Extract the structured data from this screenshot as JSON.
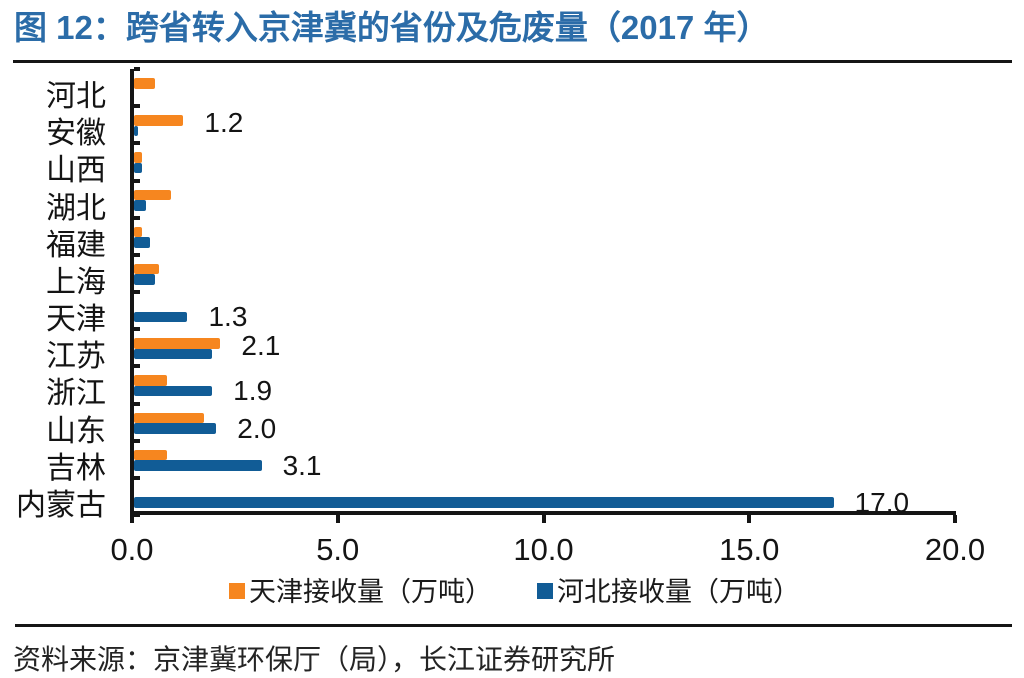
{
  "header": {
    "title": "图 12：跨省转入京津冀的省份及危废量（2017 年）"
  },
  "source": {
    "note": "资料来源：京津冀环保厅（局），长江证券研究所"
  },
  "colors": {
    "title_blue": "#2B6CA8",
    "tianjin_orange": "#F6861F",
    "hebei_blue": "#115C96",
    "axis_black": "#151515",
    "text_black": "#141414",
    "background": "#ffffff"
  },
  "chart_data": {
    "type": "bar",
    "orientation": "horizontal",
    "title": "图 12：跨省转入京津冀的省份及危废量（2017 年）",
    "categories": [
      "河北",
      "安徽",
      "山西",
      "湖北",
      "福建",
      "上海",
      "天津",
      "江苏",
      "浙江",
      "山东",
      "吉林",
      "内蒙古"
    ],
    "series": [
      {
        "name": "天津接收量（万吨）",
        "color": "#F6861F",
        "values": [
          0.5,
          1.2,
          0.2,
          0.9,
          0.2,
          0.6,
          0,
          2.1,
          0.8,
          1.7,
          0.8,
          0
        ]
      },
      {
        "name": "河北接收量（万吨）",
        "color": "#115C96",
        "values": [
          0,
          0.1,
          0.2,
          0.3,
          0.4,
          0.5,
          1.3,
          1.9,
          1.9,
          2.0,
          3.1,
          17.0
        ]
      }
    ],
    "data_labels": [
      {
        "category_index": 1,
        "series_index": 0,
        "text": "1.2"
      },
      {
        "category_index": 6,
        "series_index": 1,
        "text": "1.3"
      },
      {
        "category_index": 7,
        "series_index": 0,
        "text": "2.1"
      },
      {
        "category_index": 8,
        "series_index": 1,
        "text": "1.9"
      },
      {
        "category_index": 9,
        "series_index": 1,
        "text": "2.0"
      },
      {
        "category_index": 10,
        "series_index": 1,
        "text": "3.1"
      },
      {
        "category_index": 11,
        "series_index": 1,
        "text": "17.0"
      }
    ],
    "x_axis": {
      "min": 0,
      "max": 20,
      "tick_values": [
        0,
        5,
        10,
        15,
        20
      ],
      "tick_labels": [
        "0.0",
        "5.0",
        "10.0",
        "15.0",
        "20.0"
      ]
    },
    "legend": {
      "position": "bottom",
      "entries": [
        {
          "label": "天津接收量（万吨）",
          "color": "#F6861F"
        },
        {
          "label": "河北接收量（万吨）",
          "color": "#115C96"
        }
      ]
    },
    "grid": false,
    "ylabel": "",
    "xlabel": ""
  }
}
